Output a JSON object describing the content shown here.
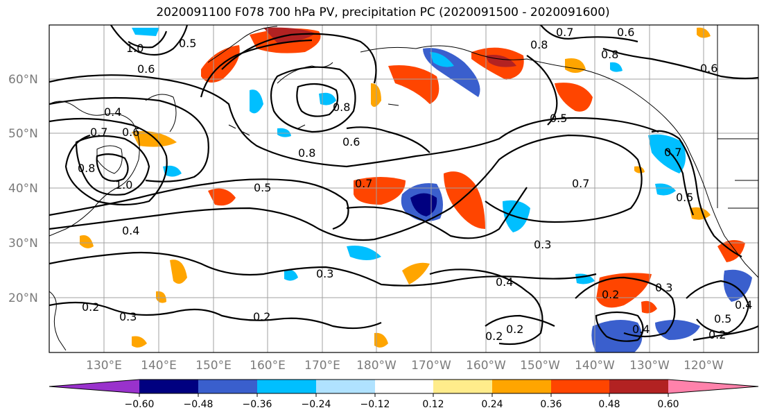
{
  "title": "2020091100 F078 700 hPa PV, precipitation PC (2020091500 - 2020091600)",
  "latitude_labels": [
    "60°N",
    "50°N",
    "40°N",
    "30°N",
    "20°N"
  ],
  "longitude_labels": [
    "130°E",
    "140°E",
    "150°E",
    "160°E",
    "170°E",
    "180°W",
    "170°W",
    "160°W",
    "150°W",
    "140°W",
    "130°W",
    "120°W"
  ],
  "colorbar": {
    "ticks": [
      "−0.60",
      "−0.48",
      "−0.36",
      "−0.24",
      "−0.12",
      "0.12",
      "0.24",
      "0.36",
      "0.48",
      "0.60"
    ],
    "colors": [
      "#9932CC",
      "#000080",
      "#3A5FCD",
      "#00BFFF",
      "#B0E2FF",
      "#FFFFFF",
      "#FFEC8B",
      "#FFA500",
      "#FF4500",
      "#B22222",
      "#FF82AB"
    ]
  },
  "contour_labels": [
    "1.0",
    "0.6",
    "0.5",
    "0.4",
    "0.7",
    "0.6",
    "0.8",
    "1.0",
    "0.8",
    "0.5",
    "0.4",
    "0.8",
    "0.6",
    "0.7",
    "0.5",
    "0.7",
    "0.8",
    "0.6",
    "0.7",
    "0.6",
    "0.8",
    "0.3",
    "0.3",
    "0.2",
    "0.3",
    "0.4",
    "0.2",
    "0.2",
    "0.2",
    "0.4",
    "0.3",
    "0.2",
    "0.5",
    "0.4",
    "0.2",
    "0.7",
    "0.5"
  ]
}
